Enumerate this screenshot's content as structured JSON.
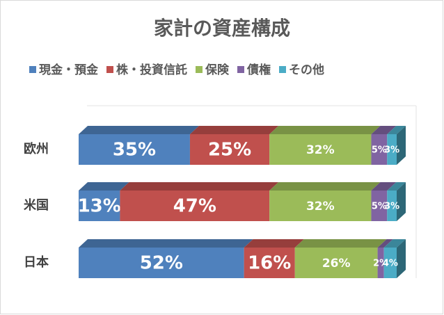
{
  "chart_data": {
    "type": "bar3d-stacked-horizontal",
    "title": "家計の資産構成",
    "categories": [
      "欧州",
      "米国",
      "日本"
    ],
    "xlim": [
      0,
      100
    ],
    "series": [
      {
        "name": "現金・預金",
        "color": "#4f81bd",
        "values": [
          35,
          13,
          52
        ],
        "value_labels": [
          "35%",
          "13%",
          "52%"
        ]
      },
      {
        "name": "株・投資信託",
        "color": "#c0504d",
        "values": [
          25,
          47,
          16
        ],
        "value_labels": [
          "25%",
          "47%",
          "16%"
        ]
      },
      {
        "name": "保険",
        "color": "#9bbb59",
        "values": [
          32,
          32,
          26
        ],
        "value_labels": [
          "32%",
          "32%",
          "26%"
        ]
      },
      {
        "name": "債権",
        "color": "#8064a2",
        "values": [
          5,
          5,
          2
        ],
        "value_labels": [
          "5%",
          "5%",
          "2%"
        ]
      },
      {
        "name": "その他",
        "color": "#4bacc6",
        "values": [
          3,
          3,
          4
        ],
        "value_labels": [
          "3%",
          "3%",
          "4%"
        ]
      }
    ]
  }
}
